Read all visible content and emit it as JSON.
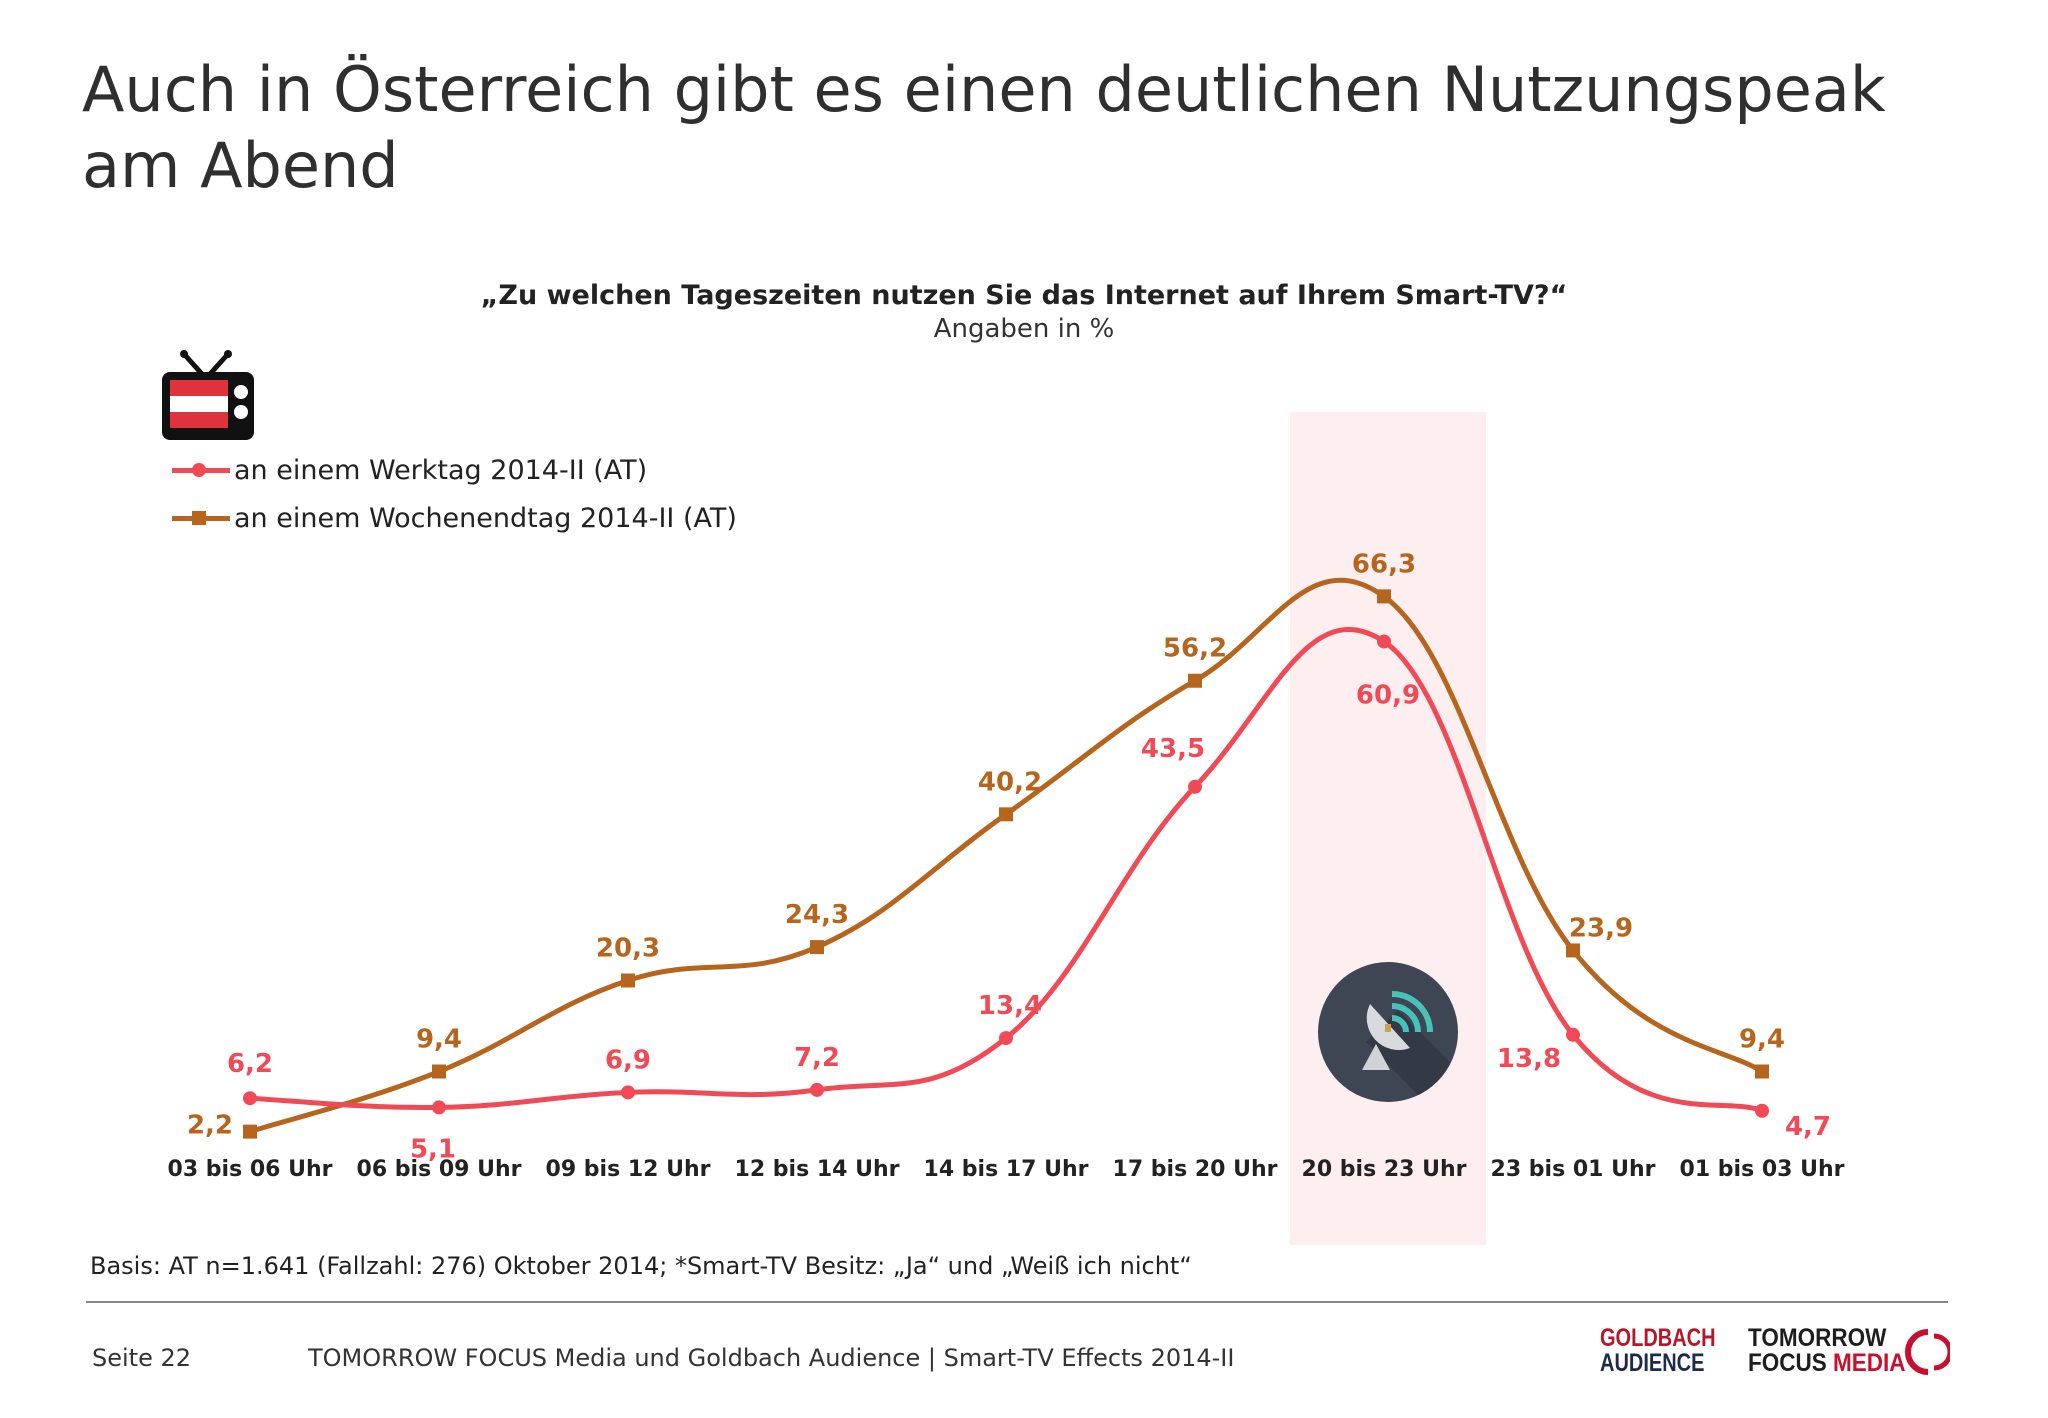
{
  "slide": {
    "title": "Auch in Österreich gibt es einen deutlichen Nutzungspeak am Abend",
    "basis": "Basis: AT n=1.641 (Fallzahl: 276) Oktober 2014; *Smart-TV Besitz: „Ja“ und „Weiß ich nicht“",
    "page": "Seite 22",
    "source": "TOMORROW FOCUS Media und Goldbach Audience | Smart-TV Effects 2014-II",
    "logo_goldbach": [
      "GOLDBACH",
      "AUDIENCE"
    ],
    "logo_tfm": [
      "TOMORROW",
      "FOCUS",
      "MEDIA"
    ]
  },
  "chart_data": {
    "type": "line",
    "title": "„Zu welchen Tageszeiten nutzen Sie das Internet auf Ihrem Smart-TV?“",
    "subtitle": "Angaben in %",
    "categories": [
      "03 bis 06 Uhr",
      "06 bis 09 Uhr",
      "09 bis 12 Uhr",
      "12 bis 14 Uhr",
      "14 bis 17 Uhr",
      "17 bis 20 Uhr",
      "20 bis 23 Uhr",
      "23 bis 01 Uhr",
      "01 bis 03 Uhr"
    ],
    "series": [
      {
        "name": "an einem Werktag 2014-II (AT)",
        "color": "#ef4a55",
        "marker": "circle",
        "values": [
          6.2,
          5.1,
          6.9,
          7.2,
          13.4,
          43.5,
          60.9,
          13.8,
          4.7
        ],
        "labels": [
          "6,2",
          "5,1",
          "6,9",
          "7,2",
          "13,4",
          "43,5",
          "60,9",
          "13,8",
          "4,7"
        ]
      },
      {
        "name": "an einem Wochenendtag 2014-II (AT)",
        "color": "#b5651d",
        "marker": "square",
        "values": [
          2.2,
          9.4,
          20.3,
          24.3,
          40.2,
          56.2,
          66.3,
          23.9,
          9.4
        ],
        "labels": [
          "2,2",
          "9,4",
          "20,3",
          "24,3",
          "40,2",
          "56,2",
          "66,3",
          "23,9",
          "9,4"
        ]
      }
    ],
    "highlight_category": "20 bis 23 Uhr",
    "highlight_color": "#fdeef0",
    "ylim": [
      0,
      70
    ],
    "grid": false,
    "legend": "top-left",
    "icons": [
      "austria-tv-icon",
      "satellite-dish-icon"
    ]
  }
}
